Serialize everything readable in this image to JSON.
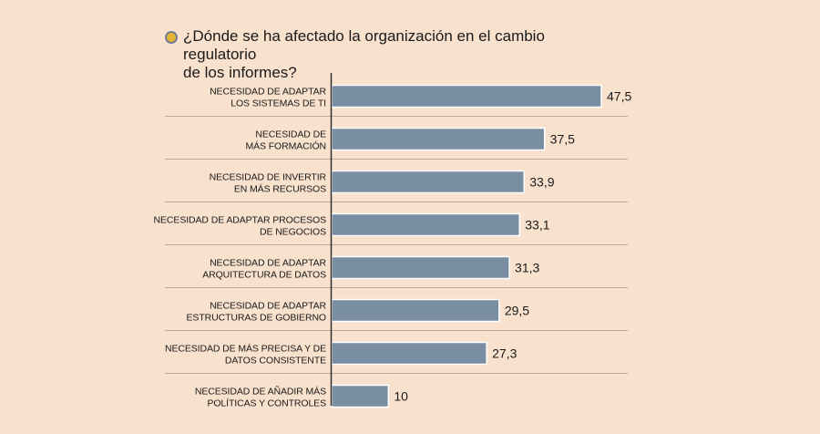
{
  "chart_data": {
    "type": "bar",
    "orientation": "horizontal",
    "title": "¿Dónde se ha afectado la organización en el cambio regulatorio\nde los informes?",
    "categories": [
      [
        "NECESIDAD DE ADAPTAR",
        "LOS SISTEMAS DE TI"
      ],
      [
        "NECESIDAD DE",
        "MÁS FORMACIÓN"
      ],
      [
        "NECESIDAD DE INVERTIR",
        "EN MÁS RECURSOS"
      ],
      [
        "NECESIDAD DE ADAPTAR PROCESOS",
        "DE NEGOCIOS"
      ],
      [
        "NECESIDAD DE ADAPTAR",
        "ARQUITECTURA DE DATOS"
      ],
      [
        "NECESIDAD DE ADAPTAR",
        "ESTRUCTURAS DE GOBIERNO"
      ],
      [
        "NECESIDAD DE MÁS PRECISA Y DE",
        "DATOS CONSISTENTE"
      ],
      [
        "NECESIDAD DE AÑADIR MÁS",
        "POLÍTICAS Y CONTROLES"
      ]
    ],
    "values": [
      47.5,
      37.5,
      33.9,
      33.1,
      31.3,
      29.5,
      27.3,
      10
    ],
    "value_labels": [
      "47,5",
      "37,5",
      "33,9",
      "33,1",
      "31,3",
      "29,5",
      "27,3",
      "10"
    ],
    "xlim": [
      0,
      47.5
    ],
    "grid": false,
    "colors": {
      "bar": "#7a8ea3",
      "bar_border": "#ffffff",
      "separator": "#b9ab9e",
      "axis": "#333333",
      "background": "#f8e1cd",
      "bullet": "#e3b533"
    }
  }
}
